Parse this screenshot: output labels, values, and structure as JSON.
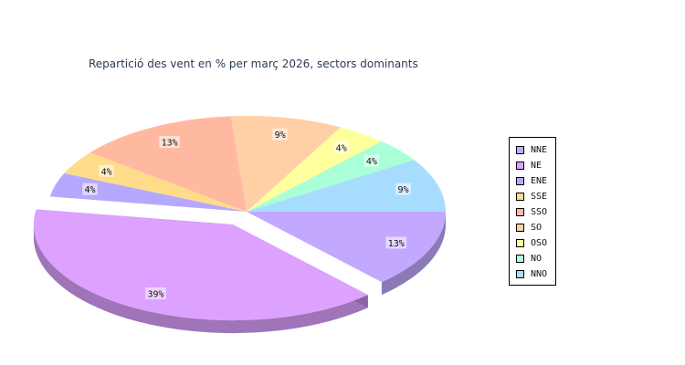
{
  "chart_data": {
    "type": "pie",
    "title": "Repartició des vent en % per març 2026, sectors dominants",
    "categories": [
      "NNE",
      "NE",
      "ENE",
      "SSE",
      "SSO",
      "SO",
      "OSO",
      "NO",
      "NNO"
    ],
    "values": [
      13,
      39,
      4,
      4,
      13,
      9,
      4,
      4,
      9
    ],
    "labels": [
      "13%",
      "39%",
      "4%",
      "4%",
      "13%",
      "9%",
      "4%",
      "4%",
      "9%"
    ],
    "exploded": [
      "NE"
    ],
    "three_d": true,
    "legend_position": "right",
    "colors": [
      "#c3a8ff",
      "#dda1ff",
      "#b6a8ff",
      "#ffdc8a",
      "#ffb9a0",
      "#ffcfa6",
      "#ffff9e",
      "#a9ffd6",
      "#a6ddff"
    ]
  }
}
